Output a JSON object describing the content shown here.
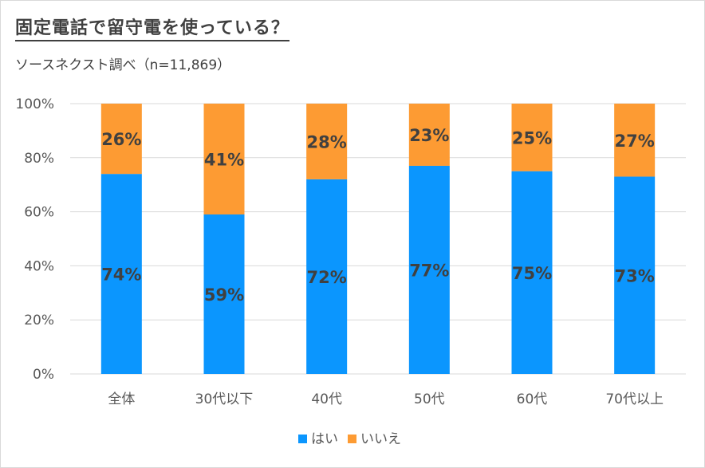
{
  "title": "固定電話で留守電を使っている？",
  "subtitle": "ソースネクスト調べ（n=11,869）",
  "colors": {
    "yes": "#0b96fe",
    "no": "#fd9b33",
    "grid": "#d9d9d9"
  },
  "chart_data": {
    "type": "bar",
    "stacked": true,
    "title": "固定電話で留守電を使っている？",
    "categories": [
      "全体",
      "30代以下",
      "40代",
      "50代",
      "60代",
      "70代以上"
    ],
    "series": [
      {
        "name": "はい",
        "values": [
          74,
          59,
          72,
          77,
          75,
          73
        ],
        "labels": [
          "74%",
          "59%",
          "72%",
          "77%",
          "75%",
          "73%"
        ]
      },
      {
        "name": "いいえ",
        "values": [
          26,
          41,
          28,
          23,
          25,
          27
        ],
        "labels": [
          "26%",
          "41%",
          "28%",
          "23%",
          "25%",
          "27%"
        ]
      }
    ],
    "ylim": [
      0,
      100
    ],
    "yticks": [
      "0%",
      "20%",
      "40%",
      "60%",
      "80%",
      "100%"
    ],
    "legend": [
      "はい",
      "いいえ"
    ],
    "legend_position": "bottom"
  }
}
